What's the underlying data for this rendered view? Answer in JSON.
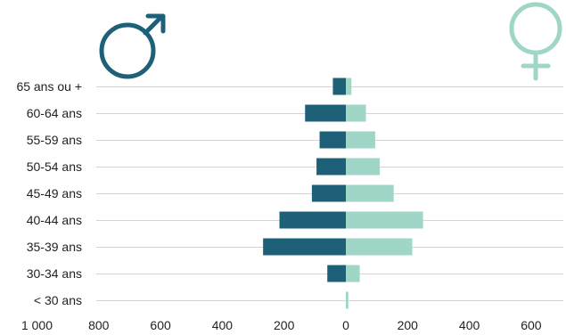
{
  "chart_data": {
    "type": "bar",
    "orientation": "horizontal",
    "layout": "population-pyramid",
    "categories": [
      "65 ans ou +",
      "60-64 ans",
      "55-59 ans",
      "50-54 ans",
      "45-49 ans",
      "40-44 ans",
      "35-39 ans",
      "30-34 ans",
      "< 30 ans"
    ],
    "series": [
      {
        "side": "left",
        "icon": "male-symbol-icon",
        "color": "#1f6079",
        "values": [
          42,
          132,
          85,
          95,
          110,
          215,
          268,
          60,
          0
        ]
      },
      {
        "side": "right",
        "icon": "female-symbol-icon",
        "color": "#9fd6c8",
        "values": [
          18,
          65,
          95,
          110,
          155,
          250,
          215,
          45,
          8
        ]
      }
    ],
    "x_ticks": [
      "1 000",
      "800",
      "600",
      "400",
      "200",
      "0",
      "200",
      "400",
      "600"
    ],
    "xlim_left": 1000,
    "xlim_right": 700,
    "grid": "horizontal",
    "title": "",
    "xlabel": "",
    "ylabel": ""
  }
}
